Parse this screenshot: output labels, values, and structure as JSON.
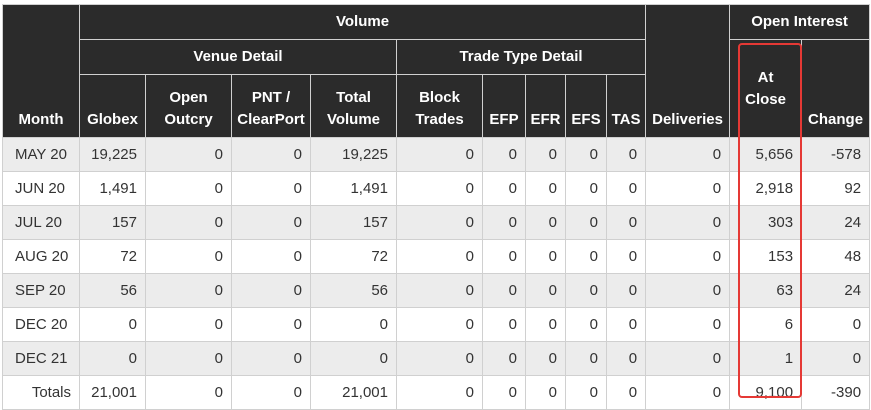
{
  "headers": {
    "volume": "Volume",
    "open_interest": "Open Interest",
    "venue_detail": "Venue Detail",
    "trade_type_detail": "Trade Type Detail",
    "month": "Month",
    "deliveries": "Deliveries",
    "globex": "Globex",
    "open_outcry_1": "Open",
    "open_outcry_2": "Outcry",
    "pnt_1": "PNT /",
    "pnt_2": "ClearPort",
    "total_volume_1": "Total",
    "total_volume_2": "Volume",
    "block_trades_1": "Block",
    "block_trades_2": "Trades",
    "efp": "EFP",
    "efr": "EFR",
    "efs": "EFS",
    "tas": "TAS",
    "at_close_1": "At",
    "at_close_2": "Close",
    "change": "Change"
  },
  "rows": [
    {
      "month": "MAY 20",
      "globex": "19,225",
      "open_outcry": "0",
      "pnt": "0",
      "total_volume": "19,225",
      "block": "0",
      "efp": "0",
      "efr": "0",
      "efs": "0",
      "tas": "0",
      "deliveries": "0",
      "at_close": "5,656",
      "change": "-578"
    },
    {
      "month": "JUN 20",
      "globex": "1,491",
      "open_outcry": "0",
      "pnt": "0",
      "total_volume": "1,491",
      "block": "0",
      "efp": "0",
      "efr": "0",
      "efs": "0",
      "tas": "0",
      "deliveries": "0",
      "at_close": "2,918",
      "change": "92"
    },
    {
      "month": "JUL 20",
      "globex": "157",
      "open_outcry": "0",
      "pnt": "0",
      "total_volume": "157",
      "block": "0",
      "efp": "0",
      "efr": "0",
      "efs": "0",
      "tas": "0",
      "deliveries": "0",
      "at_close": "303",
      "change": "24"
    },
    {
      "month": "AUG 20",
      "globex": "72",
      "open_outcry": "0",
      "pnt": "0",
      "total_volume": "72",
      "block": "0",
      "efp": "0",
      "efr": "0",
      "efs": "0",
      "tas": "0",
      "deliveries": "0",
      "at_close": "153",
      "change": "48"
    },
    {
      "month": "SEP 20",
      "globex": "56",
      "open_outcry": "0",
      "pnt": "0",
      "total_volume": "56",
      "block": "0",
      "efp": "0",
      "efr": "0",
      "efs": "0",
      "tas": "0",
      "deliveries": "0",
      "at_close": "63",
      "change": "24"
    },
    {
      "month": "DEC 20",
      "globex": "0",
      "open_outcry": "0",
      "pnt": "0",
      "total_volume": "0",
      "block": "0",
      "efp": "0",
      "efr": "0",
      "efs": "0",
      "tas": "0",
      "deliveries": "0",
      "at_close": "6",
      "change": "0"
    },
    {
      "month": "DEC 21",
      "globex": "0",
      "open_outcry": "0",
      "pnt": "0",
      "total_volume": "0",
      "block": "0",
      "efp": "0",
      "efr": "0",
      "efs": "0",
      "tas": "0",
      "deliveries": "0",
      "at_close": "1",
      "change": "0"
    }
  ],
  "totals": {
    "label": "Totals",
    "globex": "21,001",
    "open_outcry": "0",
    "pnt": "0",
    "total_volume": "21,001",
    "block": "0",
    "efp": "0",
    "efr": "0",
    "efs": "0",
    "tas": "0",
    "deliveries": "0",
    "at_close": "9,100",
    "change": "-390"
  },
  "colors": {
    "header_bg": "#2b2b2b",
    "row_alt_bg": "#ececec",
    "highlight_border": "#e53935"
  }
}
